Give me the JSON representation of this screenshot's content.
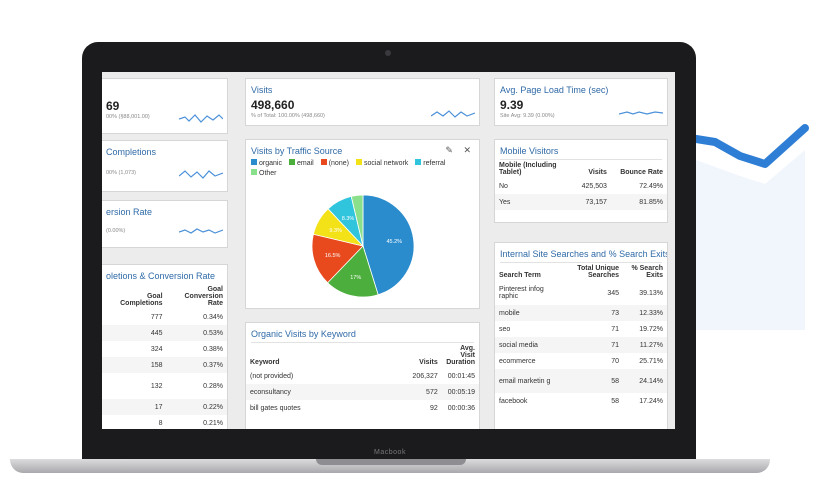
{
  "brand": "Macbook",
  "colors": {
    "accent": "#2f6aa7",
    "arrow": "#2f7ed6",
    "spark": "#4a90d9"
  },
  "cards": {
    "col1_metric1": {
      "value": "69",
      "sub": "00% (§88,001.00)"
    },
    "col1_metric2": {
      "title": "Completions",
      "sub": "00% (1,073)"
    },
    "col1_metric3": {
      "title": "ersion Rate",
      "sub": "(0.00%)"
    },
    "visits": {
      "title": "Visits",
      "value": "498,660",
      "sub": "% of Total: 100.00% (498,660)"
    },
    "load_time": {
      "title": "Avg. Page Load Time (sec)",
      "value": "9.39",
      "sub": "Site Avg: 9.39 (0.00%)"
    }
  },
  "goals": {
    "title": "oletions & Conversion Rate",
    "headers": [
      "Goal Completions",
      "Goal Conversion Rate"
    ],
    "rows": [
      [
        "777",
        "0.34%"
      ],
      [
        "445",
        "0.53%"
      ],
      [
        "324",
        "0.38%"
      ],
      [
        "158",
        "0.37%"
      ],
      [
        "132",
        "0.28%"
      ],
      [
        "17",
        "0.22%"
      ],
      [
        "8",
        "0.21%"
      ]
    ]
  },
  "traffic": {
    "title": "Visits by Traffic Source",
    "edit_icon": "pencil-icon",
    "close_icon": "close-icon",
    "edit_glyph": "✎",
    "close_glyph": "✕"
  },
  "chart_data": {
    "type": "pie",
    "title": "Visits by Traffic Source",
    "legend_position": "top",
    "categories": [
      "organic",
      "email",
      "(none)",
      "social network",
      "referral",
      "Other"
    ],
    "values": [
      45.2,
      17,
      16.5,
      9.3,
      8.3,
      3.7
    ],
    "labels": [
      "45.2%",
      "17%",
      "16.5%",
      "9.3%",
      "8.3%",
      ""
    ],
    "colors": [
      "#2a8ccd",
      "#4cae3c",
      "#e8491d",
      "#f3e218",
      "#31c4dd",
      "#8be08b"
    ]
  },
  "keywords": {
    "title": "Organic Visits by Keyword",
    "headers": [
      "Keyword",
      "Visits",
      "Avg. Visit Duration"
    ],
    "rows": [
      [
        "(not provided)",
        "206,327",
        "00:01:45"
      ],
      [
        "econsultancy",
        "572",
        "00:05:19"
      ],
      [
        "bill gates quotes",
        "92",
        "00:00:36"
      ]
    ]
  },
  "mobile": {
    "title": "Mobile Visitors",
    "headers": [
      "Mobile (Including Tablet)",
      "Visits",
      "Bounce Rate"
    ],
    "rows": [
      [
        "No",
        "425,503",
        "72.49%"
      ],
      [
        "Yes",
        "73,157",
        "81.85%"
      ]
    ]
  },
  "searches": {
    "title": "Internal Site Searches and % Search Exits…",
    "headers": [
      "Search Term",
      "Total Unique Searches",
      "% Search Exits"
    ],
    "rows": [
      [
        "Pinterest infog raphic",
        "345",
        "39.13%"
      ],
      [
        "mobile",
        "73",
        "12.33%"
      ],
      [
        "seo",
        "71",
        "19.72%"
      ],
      [
        "social media",
        "71",
        "11.27%"
      ],
      [
        "ecommerce",
        "70",
        "25.71%"
      ],
      [
        "email marketin g",
        "58",
        "24.14%"
      ],
      [
        "facebook",
        "58",
        "17.24%"
      ]
    ]
  }
}
